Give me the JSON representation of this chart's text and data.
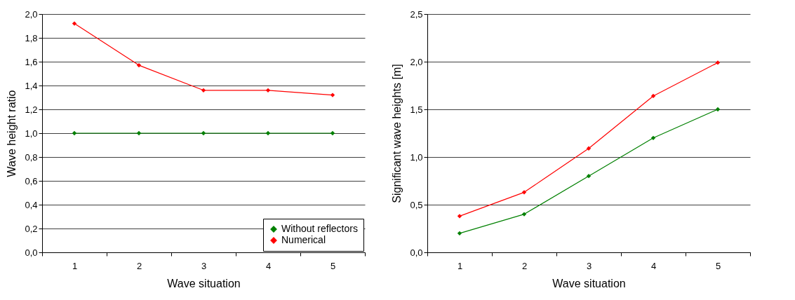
{
  "chart_data": [
    {
      "type": "line",
      "categories": [
        "1",
        "2",
        "3",
        "4",
        "5"
      ],
      "xlabel": "Wave situation",
      "ylabel": "Wave height ratio",
      "ylim": [
        0,
        2
      ],
      "yticks": [
        {
          "value": 0,
          "label": "0,0"
        },
        {
          "value": 0.2,
          "label": "0,2"
        },
        {
          "value": 0.4,
          "label": "0,4"
        },
        {
          "value": 0.6,
          "label": "0,6"
        },
        {
          "value": 0.8,
          "label": "0,8"
        },
        {
          "value": 1,
          "label": "1,0"
        },
        {
          "value": 1.2,
          "label": "1,2"
        },
        {
          "value": 1.4,
          "label": "1,4"
        },
        {
          "value": 1.6,
          "label": "1,6"
        },
        {
          "value": 1.8,
          "label": "1,8"
        },
        {
          "value": 2,
          "label": "2,0"
        }
      ],
      "grid": "y",
      "legend": "bottom right",
      "marker": "diamond",
      "line_style": "solid",
      "series": [
        {
          "name": "Without reflectors",
          "color": "#008000",
          "values": [
            1,
            1,
            1,
            1,
            1
          ]
        },
        {
          "name": "Numerical",
          "color": "#ff0000",
          "values": [
            1.92,
            1.57,
            1.36,
            1.36,
            1.32
          ]
        }
      ]
    },
    {
      "type": "line",
      "categories": [
        "1",
        "2",
        "3",
        "4",
        "5"
      ],
      "xlabel": "Wave situation",
      "ylabel": "Significant wave heights [m]",
      "ylim": [
        0,
        2.5
      ],
      "yticks": [
        {
          "value": 0,
          "label": "0,0"
        },
        {
          "value": 0.5,
          "label": "0,5"
        },
        {
          "value": 1,
          "label": "1,0"
        },
        {
          "value": 1.5,
          "label": "1,5"
        },
        {
          "value": 2,
          "label": "2,0"
        },
        {
          "value": 2.5,
          "label": "2,5"
        }
      ],
      "grid": "y",
      "legend": false,
      "marker": "diamond",
      "line_style": "solid",
      "series": [
        {
          "color": "#008000",
          "values": [
            0.2,
            0.4,
            0.8,
            1.2,
            1.5
          ]
        },
        {
          "color": "#ff0000",
          "values": [
            0.38,
            0.63,
            1.09,
            1.64,
            1.99
          ]
        }
      ]
    }
  ]
}
